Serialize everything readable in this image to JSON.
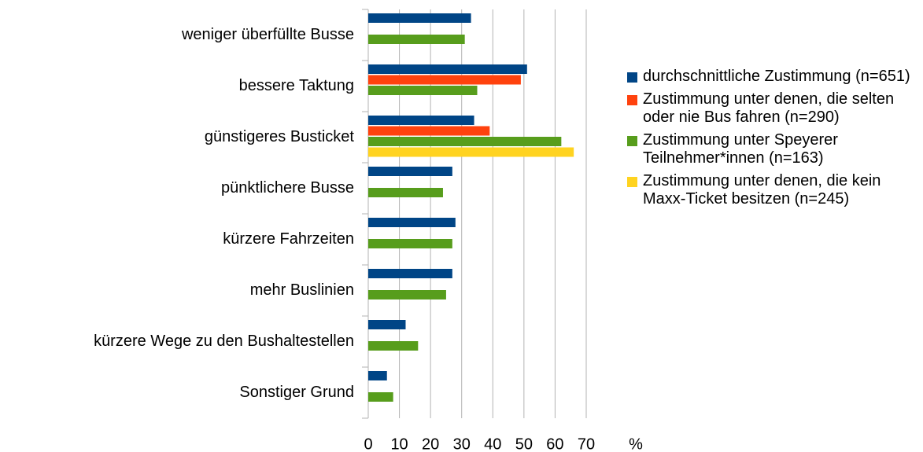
{
  "chart_data": {
    "type": "hbar",
    "x_label": "%",
    "categories": [
      "weniger überfüllte Busse",
      "bessere Taktung",
      "günstigeres Busticket",
      "pünktlichere Busse",
      "kürzere Fahrzeiten",
      "mehr Buslinien",
      "kürzere Wege zu den Bushaltestellen",
      "Sonstiger Grund"
    ],
    "series": [
      {
        "name": "durchschnittliche Zustimmung (n=651)",
        "color": "#004586",
        "values": [
          33,
          51,
          34,
          27,
          28,
          27,
          12,
          6
        ]
      },
      {
        "name": "Zustimmung unter denen, die selten oder nie Bus fahren (n=290)",
        "color": "#ff420e",
        "values": [
          null,
          49,
          39,
          null,
          null,
          null,
          null,
          null
        ]
      },
      {
        "name": "Zustimmung unter Speyerer Teilnehmer*innen (n=163)",
        "color": "#579d1c",
        "values": [
          31,
          35,
          62,
          24,
          27,
          25,
          16,
          8
        ]
      },
      {
        "name": "Zustimmung unter denen, die kein Maxx-Ticket besitzen (n=245)",
        "color": "#ffd320",
        "values": [
          null,
          null,
          66,
          null,
          null,
          null,
          null,
          null
        ]
      }
    ],
    "xlim": [
      0,
      70
    ],
    "xticks": [
      0,
      10,
      20,
      30,
      40,
      50,
      60,
      70
    ],
    "grid": true,
    "legend": "right"
  }
}
